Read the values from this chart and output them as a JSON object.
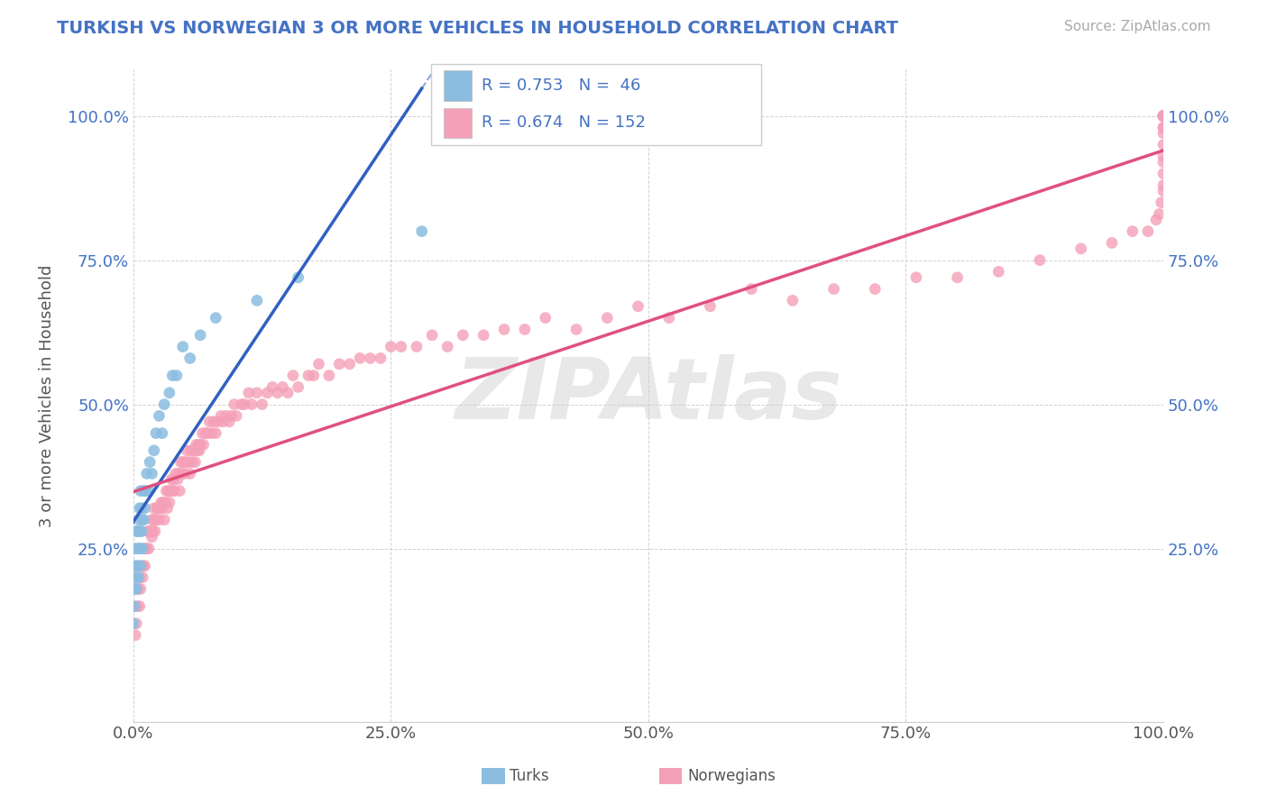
{
  "title": "TURKISH VS NORWEGIAN 3 OR MORE VEHICLES IN HOUSEHOLD CORRELATION CHART",
  "source_text": "Source: ZipAtlas.com",
  "ylabel": "3 or more Vehicles in Household",
  "xlim": [
    0,
    1.0
  ],
  "ylim": [
    -0.05,
    1.08
  ],
  "xtick_labels": [
    "0.0%",
    "25.0%",
    "50.0%",
    "75.0%",
    "100.0%"
  ],
  "xtick_vals": [
    0,
    0.25,
    0.5,
    0.75,
    1.0
  ],
  "ytick_labels": [
    "25.0%",
    "50.0%",
    "75.0%",
    "100.0%"
  ],
  "ytick_vals": [
    0.25,
    0.5,
    0.75,
    1.0
  ],
  "legend_R_turks": "R = 0.753",
  "legend_N_turks": "N =  46",
  "legend_R_norwegians": "R = 0.674",
  "legend_N_norwegians": "N = 152",
  "color_turks": "#8bbde0",
  "color_norwegians": "#f4a0b8",
  "color_line_turks": "#3060c0",
  "color_line_norwegians": "#e05080",
  "color_title": "#4472c4",
  "color_legend_text": "#4472c4",
  "color_legend_N": "#333333",
  "watermark": "ZIPAtlas",
  "background_color": "#ffffff",
  "turks_x": [
    0.0,
    0.001,
    0.001,
    0.002,
    0.002,
    0.002,
    0.003,
    0.003,
    0.003,
    0.004,
    0.004,
    0.005,
    0.005,
    0.005,
    0.006,
    0.006,
    0.007,
    0.007,
    0.007,
    0.008,
    0.008,
    0.009,
    0.009,
    0.01,
    0.01,
    0.011,
    0.012,
    0.013,
    0.015,
    0.016,
    0.018,
    0.02,
    0.022,
    0.025,
    0.028,
    0.03,
    0.035,
    0.038,
    0.042,
    0.048,
    0.055,
    0.065,
    0.08,
    0.12,
    0.16,
    0.28
  ],
  "turks_y": [
    0.12,
    0.15,
    0.18,
    0.2,
    0.22,
    0.25,
    0.18,
    0.22,
    0.28,
    0.22,
    0.28,
    0.2,
    0.25,
    0.3,
    0.25,
    0.32,
    0.22,
    0.28,
    0.35,
    0.28,
    0.32,
    0.25,
    0.3,
    0.3,
    0.35,
    0.32,
    0.35,
    0.38,
    0.35,
    0.4,
    0.38,
    0.42,
    0.45,
    0.48,
    0.45,
    0.5,
    0.52,
    0.55,
    0.55,
    0.6,
    0.58,
    0.62,
    0.65,
    0.68,
    0.72,
    0.8
  ],
  "norwegians_x": [
    0.002,
    0.003,
    0.004,
    0.005,
    0.006,
    0.006,
    0.007,
    0.008,
    0.009,
    0.01,
    0.01,
    0.011,
    0.012,
    0.013,
    0.014,
    0.015,
    0.016,
    0.017,
    0.018,
    0.018,
    0.019,
    0.02,
    0.02,
    0.021,
    0.022,
    0.023,
    0.024,
    0.025,
    0.026,
    0.027,
    0.028,
    0.029,
    0.03,
    0.031,
    0.032,
    0.033,
    0.034,
    0.035,
    0.036,
    0.037,
    0.038,
    0.039,
    0.04,
    0.041,
    0.043,
    0.044,
    0.045,
    0.046,
    0.047,
    0.048,
    0.05,
    0.051,
    0.052,
    0.053,
    0.055,
    0.056,
    0.057,
    0.058,
    0.06,
    0.061,
    0.062,
    0.063,
    0.064,
    0.065,
    0.067,
    0.068,
    0.07,
    0.072,
    0.074,
    0.076,
    0.078,
    0.08,
    0.082,
    0.085,
    0.087,
    0.09,
    0.093,
    0.095,
    0.098,
    0.1,
    0.105,
    0.108,
    0.112,
    0.115,
    0.12,
    0.125,
    0.13,
    0.135,
    0.14,
    0.145,
    0.15,
    0.155,
    0.16,
    0.17,
    0.175,
    0.18,
    0.19,
    0.2,
    0.21,
    0.22,
    0.23,
    0.24,
    0.25,
    0.26,
    0.275,
    0.29,
    0.305,
    0.32,
    0.34,
    0.36,
    0.38,
    0.4,
    0.43,
    0.46,
    0.49,
    0.52,
    0.56,
    0.6,
    0.64,
    0.68,
    0.72,
    0.76,
    0.8,
    0.84,
    0.88,
    0.92,
    0.95,
    0.97,
    0.985,
    0.993,
    0.996,
    0.998,
    1.0,
    1.0,
    1.0,
    1.0,
    1.0,
    1.0,
    1.0,
    1.0,
    1.0,
    1.0,
    1.0,
    1.0,
    1.0,
    1.0,
    1.0,
    1.0,
    1.0,
    1.0,
    1.0,
    1.0
  ],
  "norwegians_y": [
    0.1,
    0.12,
    0.15,
    0.18,
    0.15,
    0.2,
    0.18,
    0.22,
    0.2,
    0.22,
    0.25,
    0.22,
    0.25,
    0.25,
    0.28,
    0.25,
    0.28,
    0.28,
    0.27,
    0.3,
    0.28,
    0.3,
    0.32,
    0.28,
    0.3,
    0.32,
    0.32,
    0.3,
    0.32,
    0.33,
    0.32,
    0.33,
    0.3,
    0.33,
    0.35,
    0.32,
    0.35,
    0.33,
    0.35,
    0.37,
    0.35,
    0.37,
    0.35,
    0.38,
    0.37,
    0.38,
    0.35,
    0.4,
    0.38,
    0.4,
    0.38,
    0.4,
    0.42,
    0.4,
    0.38,
    0.42,
    0.4,
    0.42,
    0.4,
    0.43,
    0.42,
    0.43,
    0.42,
    0.43,
    0.45,
    0.43,
    0.45,
    0.45,
    0.47,
    0.45,
    0.47,
    0.45,
    0.47,
    0.48,
    0.47,
    0.48,
    0.47,
    0.48,
    0.5,
    0.48,
    0.5,
    0.5,
    0.52,
    0.5,
    0.52,
    0.5,
    0.52,
    0.53,
    0.52,
    0.53,
    0.52,
    0.55,
    0.53,
    0.55,
    0.55,
    0.57,
    0.55,
    0.57,
    0.57,
    0.58,
    0.58,
    0.58,
    0.6,
    0.6,
    0.6,
    0.62,
    0.6,
    0.62,
    0.62,
    0.63,
    0.63,
    0.65,
    0.63,
    0.65,
    0.67,
    0.65,
    0.67,
    0.7,
    0.68,
    0.7,
    0.7,
    0.72,
    0.72,
    0.73,
    0.75,
    0.77,
    0.78,
    0.8,
    0.8,
    0.82,
    0.83,
    0.85,
    0.87,
    0.88,
    0.9,
    0.92,
    0.93,
    0.95,
    0.97,
    0.98,
    1.0,
    1.0,
    0.98,
    1.0,
    1.0,
    1.0,
    1.0,
    1.0,
    1.0,
    1.0,
    1.0,
    1.0
  ]
}
